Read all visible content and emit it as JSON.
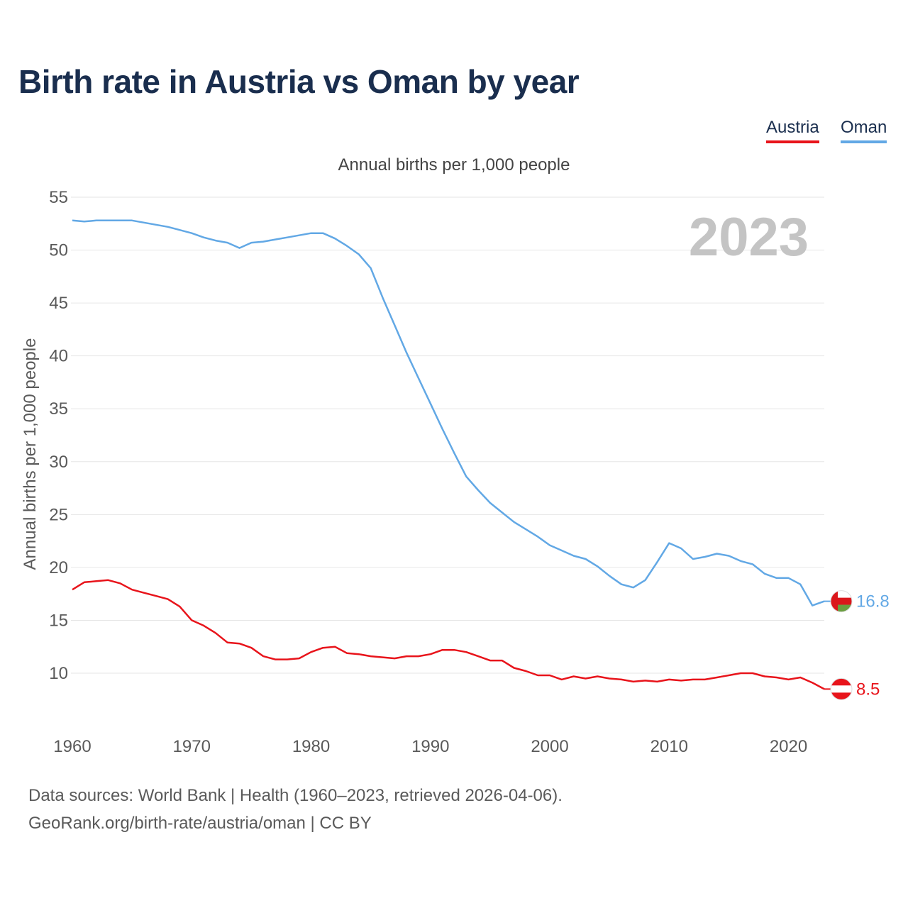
{
  "title": "Birth rate in Austria vs Oman by year",
  "legend": {
    "austria": "Austria",
    "oman": "Oman"
  },
  "footer": {
    "source": "Data sources: World Bank | Health (1960–2023, retrieved 2026-04-06).",
    "attribution": "GeoRank.org/birth-rate/austria/oman | CC BY"
  },
  "colors": {
    "austria": "#e8141b",
    "oman": "#62a8e5",
    "title": "#1a2e4e"
  },
  "chart_data": {
    "type": "line",
    "title": "Annual births per 1,000 people",
    "ylabel": "Annual births per 1,000 people",
    "xlabel": "",
    "year_label": "2023",
    "xlim": [
      1960,
      2023
    ],
    "ylim": [
      5,
      55
    ],
    "yticks": [
      10,
      15,
      20,
      25,
      30,
      35,
      40,
      45,
      50,
      55
    ],
    "xticks": [
      1960,
      1970,
      1980,
      1990,
      2000,
      2010,
      2020
    ],
    "x": [
      1960,
      1961,
      1962,
      1963,
      1964,
      1965,
      1966,
      1967,
      1968,
      1969,
      1970,
      1971,
      1972,
      1973,
      1974,
      1975,
      1976,
      1977,
      1978,
      1979,
      1980,
      1981,
      1982,
      1983,
      1984,
      1985,
      1986,
      1987,
      1988,
      1989,
      1990,
      1991,
      1992,
      1993,
      1994,
      1995,
      1996,
      1997,
      1998,
      1999,
      2000,
      2001,
      2002,
      2003,
      2004,
      2005,
      2006,
      2007,
      2008,
      2009,
      2010,
      2011,
      2012,
      2013,
      2014,
      2015,
      2016,
      2017,
      2018,
      2019,
      2020,
      2021,
      2022,
      2023
    ],
    "series": [
      {
        "name": "Austria",
        "color": "#e8141b",
        "end_label": "8.5",
        "values": [
          17.9,
          18.6,
          18.7,
          18.8,
          18.5,
          17.9,
          17.6,
          17.3,
          17.0,
          16.3,
          15.0,
          14.5,
          13.8,
          12.9,
          12.8,
          12.4,
          11.6,
          11.3,
          11.3,
          11.4,
          12.0,
          12.4,
          12.5,
          11.9,
          11.8,
          11.6,
          11.5,
          11.4,
          11.6,
          11.6,
          11.8,
          12.2,
          12.2,
          12.0,
          11.6,
          11.2,
          11.2,
          10.5,
          10.2,
          9.8,
          9.8,
          9.4,
          9.7,
          9.5,
          9.7,
          9.5,
          9.4,
          9.2,
          9.3,
          9.2,
          9.4,
          9.3,
          9.4,
          9.4,
          9.6,
          9.8,
          10.0,
          10.0,
          9.7,
          9.6,
          9.4,
          9.6,
          9.1,
          8.5
        ]
      },
      {
        "name": "Oman",
        "color": "#62a8e5",
        "end_label": "16.8",
        "values": [
          52.8,
          52.7,
          52.8,
          52.8,
          52.8,
          52.8,
          52.6,
          52.4,
          52.2,
          51.9,
          51.6,
          51.2,
          50.9,
          50.7,
          50.2,
          50.7,
          50.8,
          51.0,
          51.2,
          51.4,
          51.6,
          51.6,
          51.1,
          50.4,
          49.6,
          48.3,
          45.5,
          42.9,
          40.3,
          37.9,
          35.5,
          33.1,
          30.8,
          28.6,
          27.3,
          26.1,
          25.2,
          24.3,
          23.6,
          22.9,
          22.1,
          21.6,
          21.1,
          20.8,
          20.1,
          19.2,
          18.4,
          18.1,
          18.8,
          20.5,
          22.3,
          21.8,
          20.8,
          21.0,
          21.3,
          21.1,
          20.6,
          20.3,
          19.4,
          19.0,
          19.0,
          18.4,
          16.4,
          16.8
        ]
      }
    ]
  }
}
